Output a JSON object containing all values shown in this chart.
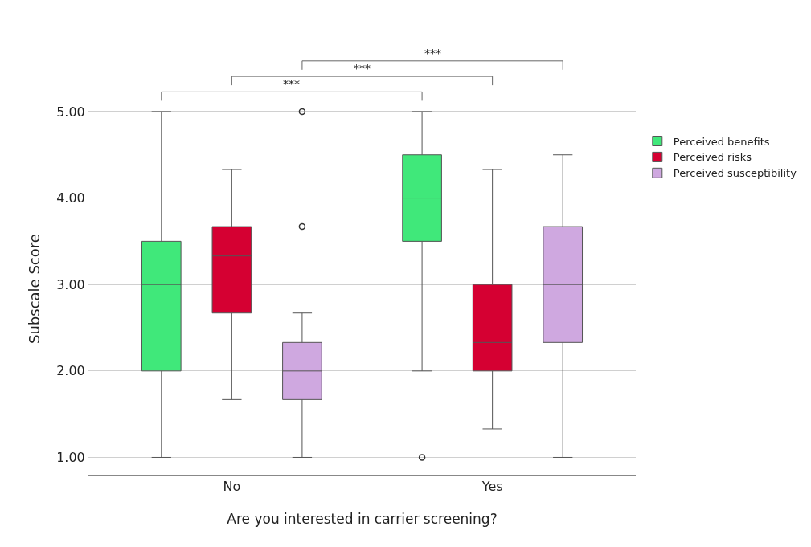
{
  "chart_data": {
    "type": "box",
    "xlabel": "Are you interested in carrier screening?",
    "ylabel": "Subscale Score",
    "categories": [
      "No",
      "Yes"
    ],
    "series": [
      {
        "name": "Perceived benefits",
        "color": "#40e87a",
        "boxes": [
          {
            "low": 1,
            "q1": 2,
            "median": 3,
            "q3": 3.5,
            "high": 5
          },
          {
            "low": 2,
            "q1": 3.5,
            "median": 4,
            "q3": 4.5,
            "high": 5,
            "outliers": [
              1
            ]
          }
        ]
      },
      {
        "name": "Perceived risks",
        "color": "#d50032",
        "boxes": [
          {
            "low": 1.67,
            "q1": 2.67,
            "median": 3.33,
            "q3": 3.67,
            "high": 4.33
          },
          {
            "low": 1.33,
            "q1": 2,
            "median": 2.33,
            "q3": 3,
            "high": 4.33
          }
        ]
      },
      {
        "name": "Perceived susceptibility",
        "color": "#cfa8e0",
        "boxes": [
          {
            "low": 1,
            "q1": 1.67,
            "median": 2,
            "q3": 2.33,
            "high": 2.67,
            "outliers": [
              3.67,
              5
            ]
          },
          {
            "low": 1,
            "q1": 2.33,
            "median": 3,
            "q3": 3.67,
            "high": 4.5
          }
        ]
      }
    ],
    "annotations": [
      "***",
      "***",
      "***"
    ],
    "ylim": [
      0.8,
      5.1
    ],
    "yticks": [
      {
        "value": 1,
        "label": "1.00"
      },
      {
        "value": 2,
        "label": "2.00"
      },
      {
        "value": 3,
        "label": "3.00"
      },
      {
        "value": 4,
        "label": "4.00"
      },
      {
        "value": 5,
        "label": "5.00"
      }
    ],
    "grid": "y",
    "legend": "top right"
  }
}
